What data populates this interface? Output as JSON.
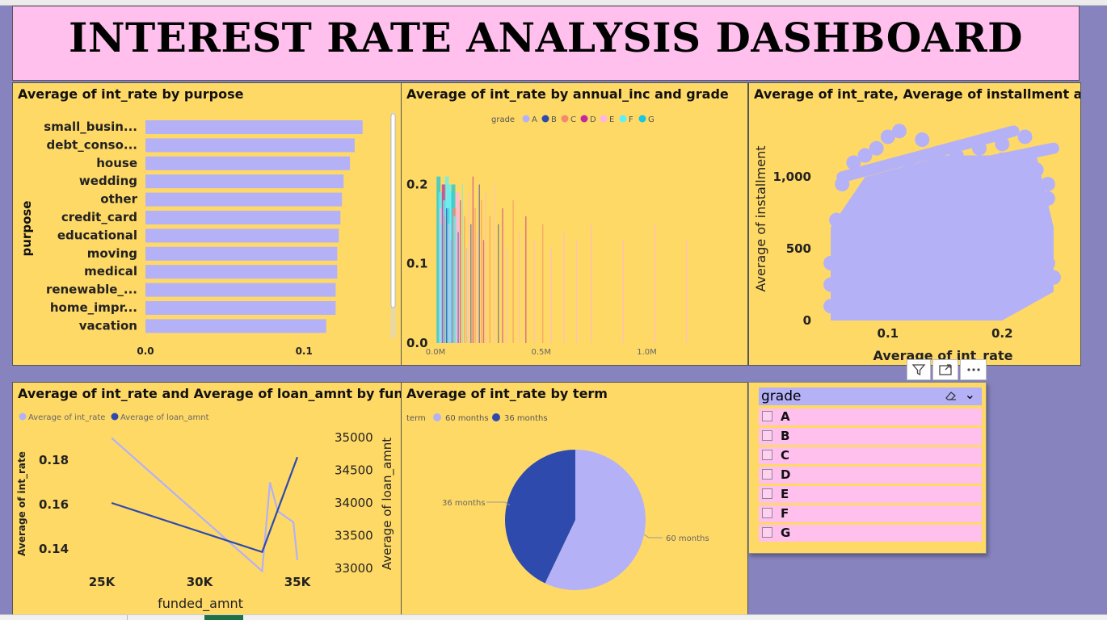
{
  "title": "INTEREST RATE ANALYSIS DASHBOARD",
  "charts": {
    "purpose": {
      "title": "Average of int_rate by purpose",
      "ylabel": "purpose",
      "ticks": [
        "0.0",
        "0.1"
      ]
    },
    "annual_inc": {
      "title": "Average of int_rate by annual_inc and grade",
      "legend_title": "grade",
      "yticks": [
        "0.2",
        "0.1",
        "0.0"
      ],
      "xticks": [
        "0.0M",
        "0.5M",
        "1.0M"
      ]
    },
    "installment": {
      "title": "Average of int_rate, Average of installment and ...",
      "xlabel": "Average of int_rate",
      "ylabel": "Average of installment",
      "xticks": [
        "0.1",
        "0.2"
      ],
      "yticks": [
        "1,000",
        "500",
        "0"
      ]
    },
    "funded": {
      "title": "Average of int_rate and Average of loan_amnt by funded_...",
      "legend": [
        "Average of int_rate",
        "Average of loan_amnt"
      ],
      "xlabel": "funded_amnt",
      "ylabel_left": "Average of int_rate",
      "ylabel_right": "Average of loan_amnt",
      "xticks": [
        "25K",
        "30K",
        "35K"
      ],
      "yticks_left": [
        "0.18",
        "0.16",
        "0.14"
      ],
      "yticks_right": [
        "35000",
        "34500",
        "34000",
        "33500",
        "33000"
      ]
    },
    "term": {
      "title": "Average of int_rate by term",
      "legend_title": "term",
      "legend": [
        "60 months",
        "36 months"
      ],
      "labels": [
        "36 months",
        "60 months"
      ]
    }
  },
  "slicer": {
    "title": "grade",
    "items": [
      "A",
      "B",
      "C",
      "D",
      "E",
      "F",
      "G"
    ]
  },
  "chart_data": [
    {
      "type": "bar",
      "orientation": "horizontal",
      "title": "Average of int_rate by purpose",
      "ylabel": "purpose",
      "categories": [
        "small_busin...",
        "debt_conso...",
        "house",
        "wedding",
        "other",
        "credit_card",
        "educational",
        "moving",
        "medical",
        "renewable_...",
        "home_impr...",
        "vacation"
      ],
      "values": [
        0.137,
        0.132,
        0.129,
        0.125,
        0.124,
        0.123,
        0.122,
        0.121,
        0.121,
        0.12,
        0.12,
        0.114
      ],
      "xlim": [
        0,
        0.14
      ],
      "color": "#b4b1f7"
    },
    {
      "type": "bar",
      "title": "Average of int_rate by annual_inc and grade",
      "legend_title": "grade",
      "series": [
        {
          "name": "A",
          "color": "#b4b1f7"
        },
        {
          "name": "B",
          "color": "#2e4aad"
        },
        {
          "name": "C",
          "color": "#f4896e"
        },
        {
          "name": "D",
          "color": "#c4289b"
        },
        {
          "name": "E",
          "color": "#ffb3e6"
        },
        {
          "name": "F",
          "color": "#5ff0f5"
        },
        {
          "name": "G",
          "color": "#19c5e0"
        }
      ],
      "xlim": [
        0,
        1.3
      ],
      "ylim": [
        0,
        0.23
      ],
      "xunit": "M",
      "bars": [
        {
          "x": 0.02,
          "y": 0.21,
          "series": "G"
        },
        {
          "x": 0.03,
          "y": 0.19,
          "series": "F"
        },
        {
          "x": 0.035,
          "y": 0.17,
          "series": "E"
        },
        {
          "x": 0.04,
          "y": 0.15,
          "series": "F"
        },
        {
          "x": 0.045,
          "y": 0.2,
          "series": "D"
        },
        {
          "x": 0.05,
          "y": 0.18,
          "series": "F"
        },
        {
          "x": 0.055,
          "y": 0.16,
          "series": "C"
        },
        {
          "x": 0.06,
          "y": 0.21,
          "series": "F"
        },
        {
          "x": 0.065,
          "y": 0.17,
          "series": "B"
        },
        {
          "x": 0.07,
          "y": 0.2,
          "series": "F"
        },
        {
          "x": 0.075,
          "y": 0.15,
          "series": "E"
        },
        {
          "x": 0.08,
          "y": 0.19,
          "series": "F"
        },
        {
          "x": 0.085,
          "y": 0.13,
          "series": "A"
        },
        {
          "x": 0.09,
          "y": 0.2,
          "series": "G"
        },
        {
          "x": 0.095,
          "y": 0.17,
          "series": "C"
        },
        {
          "x": 0.1,
          "y": 0.16,
          "series": "F"
        },
        {
          "x": 0.11,
          "y": 0.19,
          "series": "E"
        },
        {
          "x": 0.12,
          "y": 0.14,
          "series": "B"
        },
        {
          "x": 0.13,
          "y": 0.18,
          "series": "D"
        },
        {
          "x": 0.14,
          "y": 0.2,
          "series": "F"
        },
        {
          "x": 0.15,
          "y": 0.16,
          "series": "C"
        },
        {
          "x": 0.16,
          "y": 0.12,
          "series": "A"
        },
        {
          "x": 0.17,
          "y": 0.19,
          "series": "E"
        },
        {
          "x": 0.18,
          "y": 0.15,
          "series": "B"
        },
        {
          "x": 0.19,
          "y": 0.21,
          "series": "D"
        },
        {
          "x": 0.2,
          "y": 0.17,
          "series": "C"
        },
        {
          "x": 0.21,
          "y": 0.14,
          "series": "E"
        },
        {
          "x": 0.22,
          "y": 0.2,
          "series": "B"
        },
        {
          "x": 0.23,
          "y": 0.18,
          "series": "C"
        },
        {
          "x": 0.24,
          "y": 0.13,
          "series": "D"
        },
        {
          "x": 0.25,
          "y": 0.19,
          "series": "E"
        },
        {
          "x": 0.27,
          "y": 0.16,
          "series": "C"
        },
        {
          "x": 0.29,
          "y": 0.2,
          "series": "E"
        },
        {
          "x": 0.31,
          "y": 0.15,
          "series": "B"
        },
        {
          "x": 0.33,
          "y": 0.17,
          "series": "D"
        },
        {
          "x": 0.35,
          "y": 0.12,
          "series": "E"
        },
        {
          "x": 0.38,
          "y": 0.18,
          "series": "C"
        },
        {
          "x": 0.41,
          "y": 0.14,
          "series": "E"
        },
        {
          "x": 0.44,
          "y": 0.16,
          "series": "D"
        },
        {
          "x": 0.48,
          "y": 0.13,
          "series": "E"
        },
        {
          "x": 0.52,
          "y": 0.15,
          "series": "C"
        },
        {
          "x": 0.56,
          "y": 0.12,
          "series": "E"
        },
        {
          "x": 0.62,
          "y": 0.14,
          "series": "E"
        },
        {
          "x": 0.68,
          "y": 0.13,
          "series": "E"
        },
        {
          "x": 0.75,
          "y": 0.15,
          "series": "E"
        },
        {
          "x": 0.9,
          "y": 0.13,
          "series": "E"
        },
        {
          "x": 1.05,
          "y": 0.15,
          "series": "E"
        },
        {
          "x": 1.2,
          "y": 0.13,
          "series": "E"
        }
      ]
    },
    {
      "type": "scatter",
      "title": "Average of int_rate, Average of installment and ...",
      "xlabel": "Average of int_rate",
      "ylabel": "Average of installment",
      "xlim": [
        0.045,
        0.25
      ],
      "ylim": [
        0,
        1350
      ],
      "points": [
        [
          0.06,
          50
        ],
        [
          0.07,
          100
        ],
        [
          0.08,
          150
        ],
        [
          0.09,
          200
        ],
        [
          0.1,
          250
        ],
        [
          0.11,
          300
        ],
        [
          0.12,
          350
        ],
        [
          0.13,
          400
        ],
        [
          0.14,
          450
        ],
        [
          0.15,
          500
        ],
        [
          0.16,
          550
        ],
        [
          0.17,
          600
        ],
        [
          0.18,
          650
        ],
        [
          0.19,
          700
        ],
        [
          0.2,
          750
        ],
        [
          0.21,
          800
        ],
        [
          0.22,
          850
        ],
        [
          0.23,
          900
        ],
        [
          0.24,
          950
        ],
        [
          0.065,
          600
        ],
        [
          0.08,
          800
        ],
        [
          0.1,
          950
        ],
        [
          0.12,
          1050
        ],
        [
          0.14,
          1120
        ],
        [
          0.16,
          1150
        ],
        [
          0.18,
          1200
        ],
        [
          0.2,
          1230
        ],
        [
          0.22,
          1280
        ],
        [
          0.235,
          700
        ],
        [
          0.24,
          400
        ],
        [
          0.245,
          300
        ],
        [
          0.05,
          400
        ],
        [
          0.05,
          250
        ],
        [
          0.05,
          100
        ],
        [
          0.055,
          700
        ],
        [
          0.06,
          950
        ],
        [
          0.07,
          1100
        ],
        [
          0.08,
          1150
        ],
        [
          0.09,
          1200
        ],
        [
          0.1,
          1280
        ],
        [
          0.11,
          1320
        ],
        [
          0.13,
          1260
        ],
        [
          0.15,
          1100
        ],
        [
          0.17,
          1000
        ],
        [
          0.19,
          980
        ],
        [
          0.21,
          950
        ],
        [
          0.23,
          1050
        ],
        [
          0.2,
          1120
        ],
        [
          0.22,
          1000
        ],
        [
          0.24,
          850
        ],
        [
          0.12,
          700
        ],
        [
          0.14,
          250
        ],
        [
          0.2,
          300
        ],
        [
          0.08,
          500
        ]
      ],
      "color": "#b4b1f7"
    },
    {
      "type": "line",
      "title": "Average of int_rate and Average of loan_amnt by funded_...",
      "xlabel": "funded_amnt",
      "xlim": [
        23000,
        37000
      ],
      "series": [
        {
          "name": "Average of int_rate",
          "axis": "left",
          "color": "#b4b1f7",
          "x": [
            25500,
            33200,
            33600,
            34000,
            34800,
            35000
          ],
          "y": [
            0.19,
            0.13,
            0.17,
            0.157,
            0.152,
            0.135
          ]
        },
        {
          "name": "Average of loan_amnt",
          "axis": "right",
          "color": "#2e4aad",
          "x": [
            25500,
            33200,
            35000
          ],
          "y": [
            34000,
            33250,
            34700
          ]
        }
      ],
      "ylim_left": [
        0.125,
        0.2
      ],
      "ylim_right": [
        32900,
        35200
      ]
    },
    {
      "type": "pie",
      "title": "Average of int_rate by term",
      "legend_title": "term",
      "categories": [
        "60 months",
        "36 months"
      ],
      "values": [
        0.157,
        0.118
      ],
      "colors": [
        "#b4b1f7",
        "#2e4aad"
      ]
    }
  ]
}
